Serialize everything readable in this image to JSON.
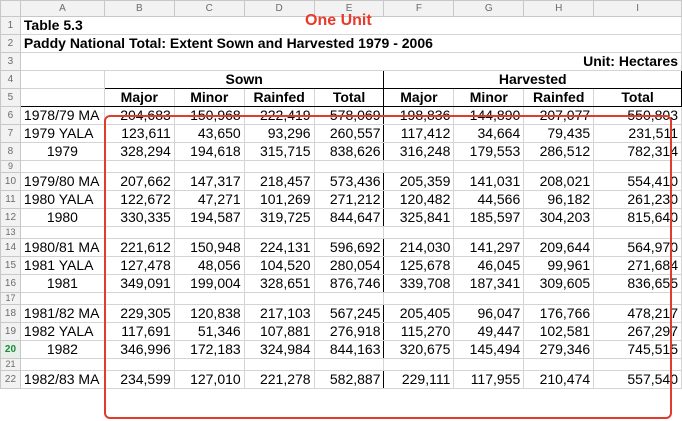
{
  "columns": [
    "A",
    "B",
    "C",
    "D",
    "E",
    "F",
    "G",
    "H",
    "I"
  ],
  "title": "Table 5.3",
  "subtitle": "Paddy National Total: Extent Sown and Harvested 1979 - 2006",
  "unit": "Unit: Hectares",
  "annotation": "One Unit",
  "group_sown": "Sown",
  "group_harvested": "Harvested",
  "sub_headers": [
    "Major",
    "Minor",
    "Rainfed",
    "Total",
    "Major",
    "Minor",
    "Rainfed",
    "Total"
  ],
  "row_numbers": [
    "1",
    "2",
    "3",
    "4",
    "5",
    "6",
    "7",
    "8",
    "9",
    "10",
    "11",
    "12",
    "13",
    "14",
    "15",
    "16",
    "17",
    "18",
    "19",
    "20",
    "21",
    "22"
  ],
  "active_row": "20",
  "highlight_color": "#e13b2c",
  "data_rows": [
    {
      "label": "1978/79 MA",
      "values": [
        "204,683",
        "150,968",
        "222,419",
        "578,069",
        "198,836",
        "144,890",
        "207,077",
        "550,803"
      ]
    },
    {
      "label": "1979 YALA",
      "values": [
        "123,611",
        "43,650",
        "93,296",
        "260,557",
        "117,412",
        "34,664",
        "79,435",
        "231,511"
      ]
    },
    {
      "label": "1979",
      "values": [
        "328,294",
        "194,618",
        "315,715",
        "838,626",
        "316,248",
        "179,553",
        "286,512",
        "782,314"
      ]
    },
    {
      "label": "1979/80 MA",
      "values": [
        "207,662",
        "147,317",
        "218,457",
        "573,436",
        "205,359",
        "141,031",
        "208,021",
        "554,410"
      ]
    },
    {
      "label": "1980 YALA",
      "values": [
        "122,672",
        "47,271",
        "101,269",
        "271,212",
        "120,482",
        "44,566",
        "96,182",
        "261,230"
      ]
    },
    {
      "label": "1980",
      "values": [
        "330,335",
        "194,587",
        "319,725",
        "844,647",
        "325,841",
        "185,597",
        "304,203",
        "815,640"
      ]
    },
    {
      "label": "1980/81 MA",
      "values": [
        "221,612",
        "150,948",
        "224,131",
        "596,692",
        "214,030",
        "141,297",
        "209,644",
        "564,970"
      ]
    },
    {
      "label": "1981 YALA",
      "values": [
        "127,478",
        "48,056",
        "104,520",
        "280,054",
        "125,678",
        "46,045",
        "99,961",
        "271,684"
      ]
    },
    {
      "label": "1981",
      "values": [
        "349,091",
        "199,004",
        "328,651",
        "876,746",
        "339,708",
        "187,341",
        "309,605",
        "836,655"
      ]
    },
    {
      "label": "1981/82 MA",
      "values": [
        "229,305",
        "120,838",
        "217,103",
        "567,245",
        "205,405",
        "96,047",
        "176,766",
        "478,217"
      ]
    },
    {
      "label": "1982 YALA",
      "values": [
        "117,691",
        "51,346",
        "107,881",
        "276,918",
        "115,270",
        "49,447",
        "102,581",
        "267,297"
      ]
    },
    {
      "label": "1982",
      "values": [
        "346,996",
        "172,183",
        "324,984",
        "844,163",
        "320,675",
        "145,494",
        "279,346",
        "745,515"
      ]
    },
    {
      "label": "1982/83 MA",
      "values": [
        "234,599",
        "127,010",
        "221,278",
        "582,887",
        "229,111",
        "117,955",
        "210,474",
        "557,540"
      ]
    }
  ]
}
